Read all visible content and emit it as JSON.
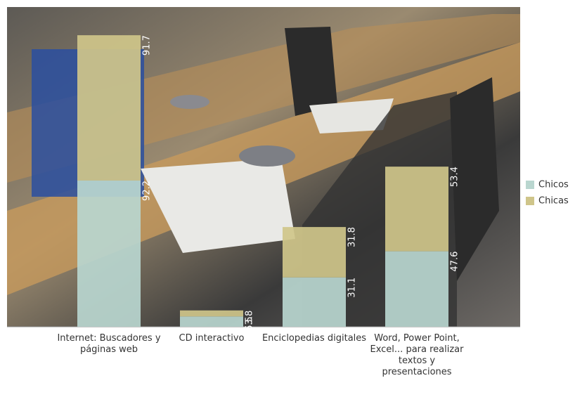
{
  "chart_data": {
    "type": "stacked-bar",
    "categories": [
      "Internet: Buscadores y páginas web",
      "CD interactivo",
      "Enciclopedias digitales",
      "Word, Power Point, Excel... para realizar textos y presentaciones"
    ],
    "series": [
      {
        "name": "Chicos",
        "color": "#b9d6cf",
        "values": [
          92.2,
          6.5,
          31.1,
          47.6
        ]
      },
      {
        "name": "Chicas",
        "color": "#cfc58a",
        "values": [
          91.7,
          3.8,
          31.8,
          53.4
        ]
      }
    ],
    "legend": "right"
  }
}
